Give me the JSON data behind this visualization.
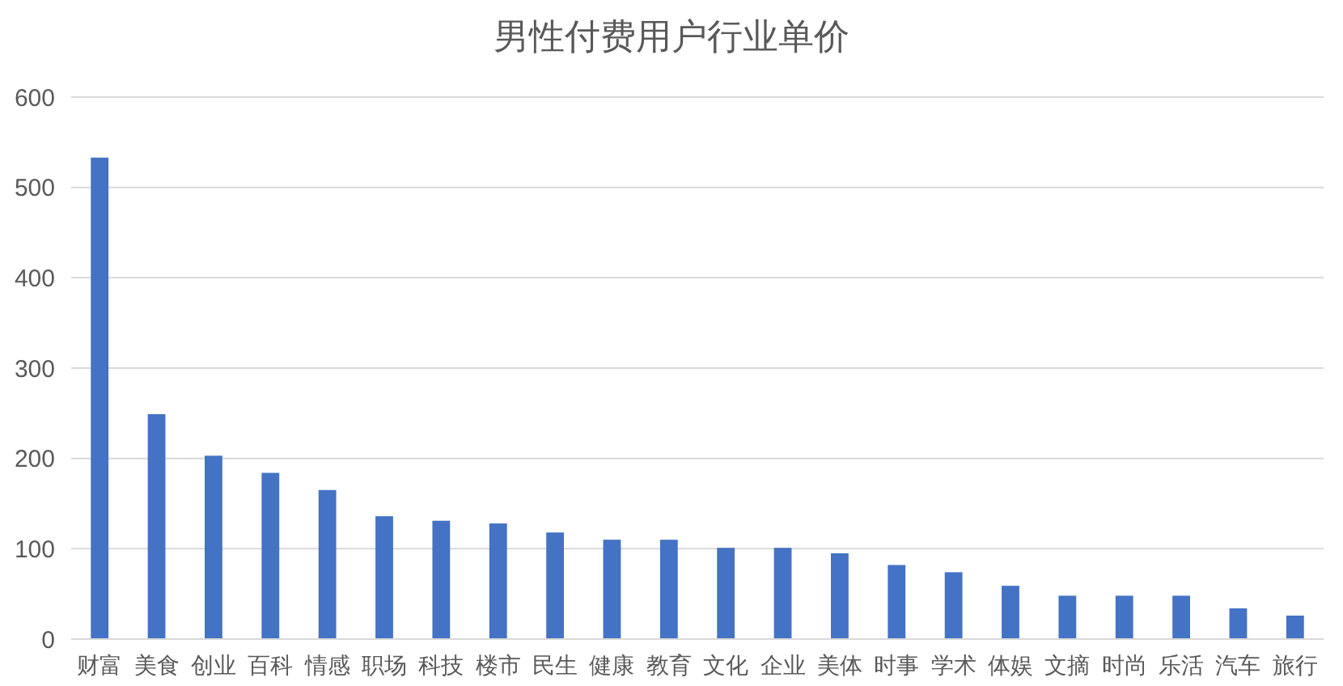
{
  "chart_data": {
    "type": "bar",
    "title": "男性付费用户行业单价",
    "categories": [
      "财富",
      "美食",
      "创业",
      "百科",
      "情感",
      "职场",
      "科技",
      "楼市",
      "民生",
      "健康",
      "教育",
      "文化",
      "企业",
      "美体",
      "时事",
      "学术",
      "体娱",
      "文摘",
      "时尚",
      "乐活",
      "汽车",
      "旅行"
    ],
    "values": [
      533,
      249,
      203,
      184,
      165,
      136,
      131,
      128,
      118,
      110,
      110,
      101,
      101,
      95,
      82,
      74,
      59,
      48,
      48,
      48,
      34,
      26
    ],
    "color": "#4472c4",
    "ylim": [
      0,
      600
    ],
    "yticks": [
      0,
      100,
      200,
      300,
      400,
      500,
      600
    ],
    "grid": "y"
  }
}
